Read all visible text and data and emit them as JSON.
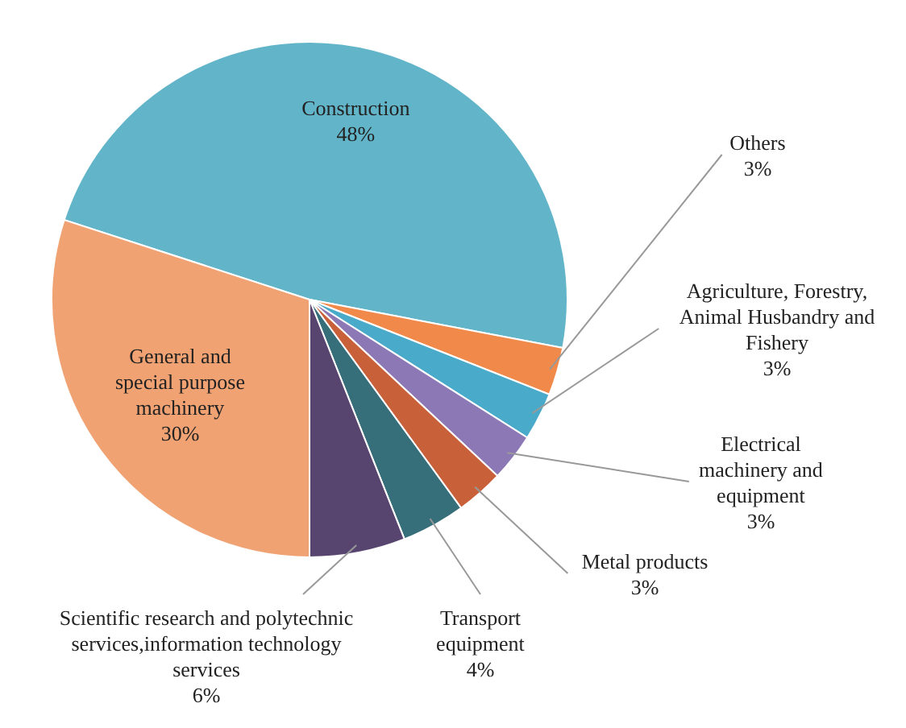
{
  "chart_data": {
    "type": "pie",
    "categories": [
      "Construction",
      "Others",
      "Agriculture, Forestry, Animal Husbandry and Fishery",
      "Electrical machinery and equipment",
      "Metal products",
      "Transport equipment",
      "Scientific research and polytechnic services,information technology services",
      "General and special purpose machinery"
    ],
    "values": [
      48,
      3,
      3,
      3,
      3,
      4,
      6,
      30
    ],
    "colors": [
      "#62b5c9",
      "#f0894a",
      "#49aac9",
      "#8b78b5",
      "#c8613a",
      "#366e7a",
      "#574570",
      "#f0a273"
    ],
    "value_labels": [
      "48%",
      "3%",
      "3%",
      "3%",
      "3%",
      "4%",
      "6%",
      "30%"
    ]
  }
}
